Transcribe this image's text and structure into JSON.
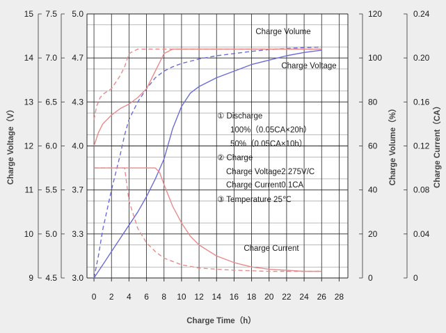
{
  "chart_data": {
    "type": "line",
    "title": "",
    "xlabel": "Charge Time（h）",
    "xticks": [
      "0",
      "2",
      "4",
      "6",
      "8",
      "10",
      "12",
      "14",
      "16",
      "18",
      "20",
      "22",
      "24",
      "26",
      "28"
    ],
    "xlim": [
      -0.8,
      29
    ],
    "axes": {
      "charge_voltage_12v": {
        "label": "Charge Voltage（V）",
        "ticks": [
          "15",
          "14",
          "13",
          "12",
          "11",
          "10",
          "9"
        ],
        "range": [
          9,
          15
        ]
      },
      "charge_voltage_6v": {
        "ticks": [
          "7.5",
          "7.0",
          "6.5",
          "6.0",
          "5.5",
          "5.0",
          "4.5"
        ],
        "range": [
          4.5,
          7.5
        ]
      },
      "cell_voltage": {
        "ticks": [
          "5.0",
          "4.7",
          "4.3",
          "4.0",
          "3.7",
          "3.3",
          "3.0"
        ],
        "range": [
          3.0,
          5.0
        ]
      },
      "charge_volume": {
        "label": "Charge Volume（%）",
        "ticks": [
          "120",
          "100",
          "80",
          "60",
          "40",
          "20",
          "0"
        ],
        "range": [
          0,
          120
        ]
      },
      "charge_current": {
        "label": "Charge Current（CA）",
        "ticks": [
          "0.24",
          "0.20",
          "0.16",
          "0.12",
          "0.08",
          "0.04",
          "0"
        ],
        "range": [
          0,
          0.24
        ]
      }
    },
    "series": [
      {
        "name": "Charge Volume",
        "axis": "charge_volume",
        "style": "solid",
        "color": "#6a6ad8",
        "x": [
          0,
          0.5,
          1,
          2,
          3,
          4,
          5,
          6,
          7,
          8,
          9,
          10,
          11,
          12,
          14,
          16,
          18,
          20,
          22,
          24,
          26
        ],
        "y": [
          0,
          3,
          6,
          12,
          18,
          24,
          30,
          37,
          45,
          54,
          68,
          78,
          84,
          87,
          91,
          94,
          97,
          99,
          101,
          102.5,
          103.5
        ]
      },
      {
        "name": "Charge Volume",
        "axis": "charge_volume",
        "style": "dashed",
        "color": "#6a6ad8",
        "x": [
          0,
          0.5,
          1,
          2,
          3,
          3.5,
          4,
          5,
          6,
          7,
          8,
          9,
          10,
          12,
          14,
          16,
          18,
          20,
          22,
          24,
          26
        ],
        "y": [
          0,
          10,
          22,
          40,
          56,
          65,
          72,
          80,
          86,
          91,
          94,
          96,
          97.5,
          99.5,
          101,
          102,
          103,
          103.8,
          104.3,
          104.7,
          105
        ]
      },
      {
        "name": "Charge Voltage",
        "axis": "charge_voltage_12v",
        "style": "solid",
        "color": "#e88a8a",
        "x": [
          0,
          0.5,
          1,
          2,
          3,
          4,
          5,
          6,
          7,
          8,
          9,
          26
        ],
        "y": [
          12.0,
          12.3,
          12.5,
          12.7,
          12.85,
          12.95,
          13.1,
          13.3,
          13.7,
          14.1,
          14.2,
          14.2
        ]
      },
      {
        "name": "Charge Voltage",
        "axis": "charge_voltage_12v",
        "style": "dashed",
        "color": "#e88a8a",
        "x": [
          0,
          0.3,
          0.7,
          1.2,
          2,
          3,
          3.5,
          4,
          5,
          26
        ],
        "y": [
          12.6,
          12.9,
          13.1,
          13.2,
          13.3,
          13.6,
          13.8,
          14.1,
          14.2,
          14.2
        ]
      },
      {
        "name": "Charge Current",
        "axis": "charge_current",
        "style": "solid",
        "color": "#e88a8a",
        "x": [
          0,
          7,
          7.5,
          8,
          9,
          10,
          11,
          12,
          14,
          16,
          18,
          20,
          22,
          24,
          26
        ],
        "y": [
          0.1,
          0.1,
          0.096,
          0.085,
          0.065,
          0.05,
          0.038,
          0.03,
          0.02,
          0.014,
          0.01,
          0.008,
          0.007,
          0.006,
          0.006
        ]
      },
      {
        "name": "Charge Current",
        "axis": "charge_current",
        "style": "dashed",
        "color": "#e88a8a",
        "x": [
          0,
          3.5,
          4,
          5,
          6,
          7,
          8,
          9,
          10,
          12,
          14,
          16,
          18,
          20,
          22,
          24,
          26
        ],
        "y": [
          0.1,
          0.1,
          0.07,
          0.045,
          0.032,
          0.024,
          0.018,
          0.015,
          0.012,
          0.009,
          0.008,
          0.007,
          0.0065,
          0.006,
          0.006,
          0.006,
          0.006
        ]
      }
    ],
    "series_labels": [
      "Charge Volume",
      "Charge Voltage",
      "Charge Current"
    ],
    "annotations": [
      "① Discharge",
      "100%（0.05CA×20h）",
      "50%（0.05CA×10h）",
      "② Charge",
      "Charge Voltage2.275V/C",
      "Charge Current0.1CA",
      "③ Temperature 25℃"
    ],
    "grid": true,
    "legend": "none"
  },
  "colors": {
    "background": "#eeeeee",
    "plot_background": "#ffffff",
    "grid": "#222222",
    "volume": "#6a6ad8",
    "voltage_current": "#e88a8a"
  }
}
